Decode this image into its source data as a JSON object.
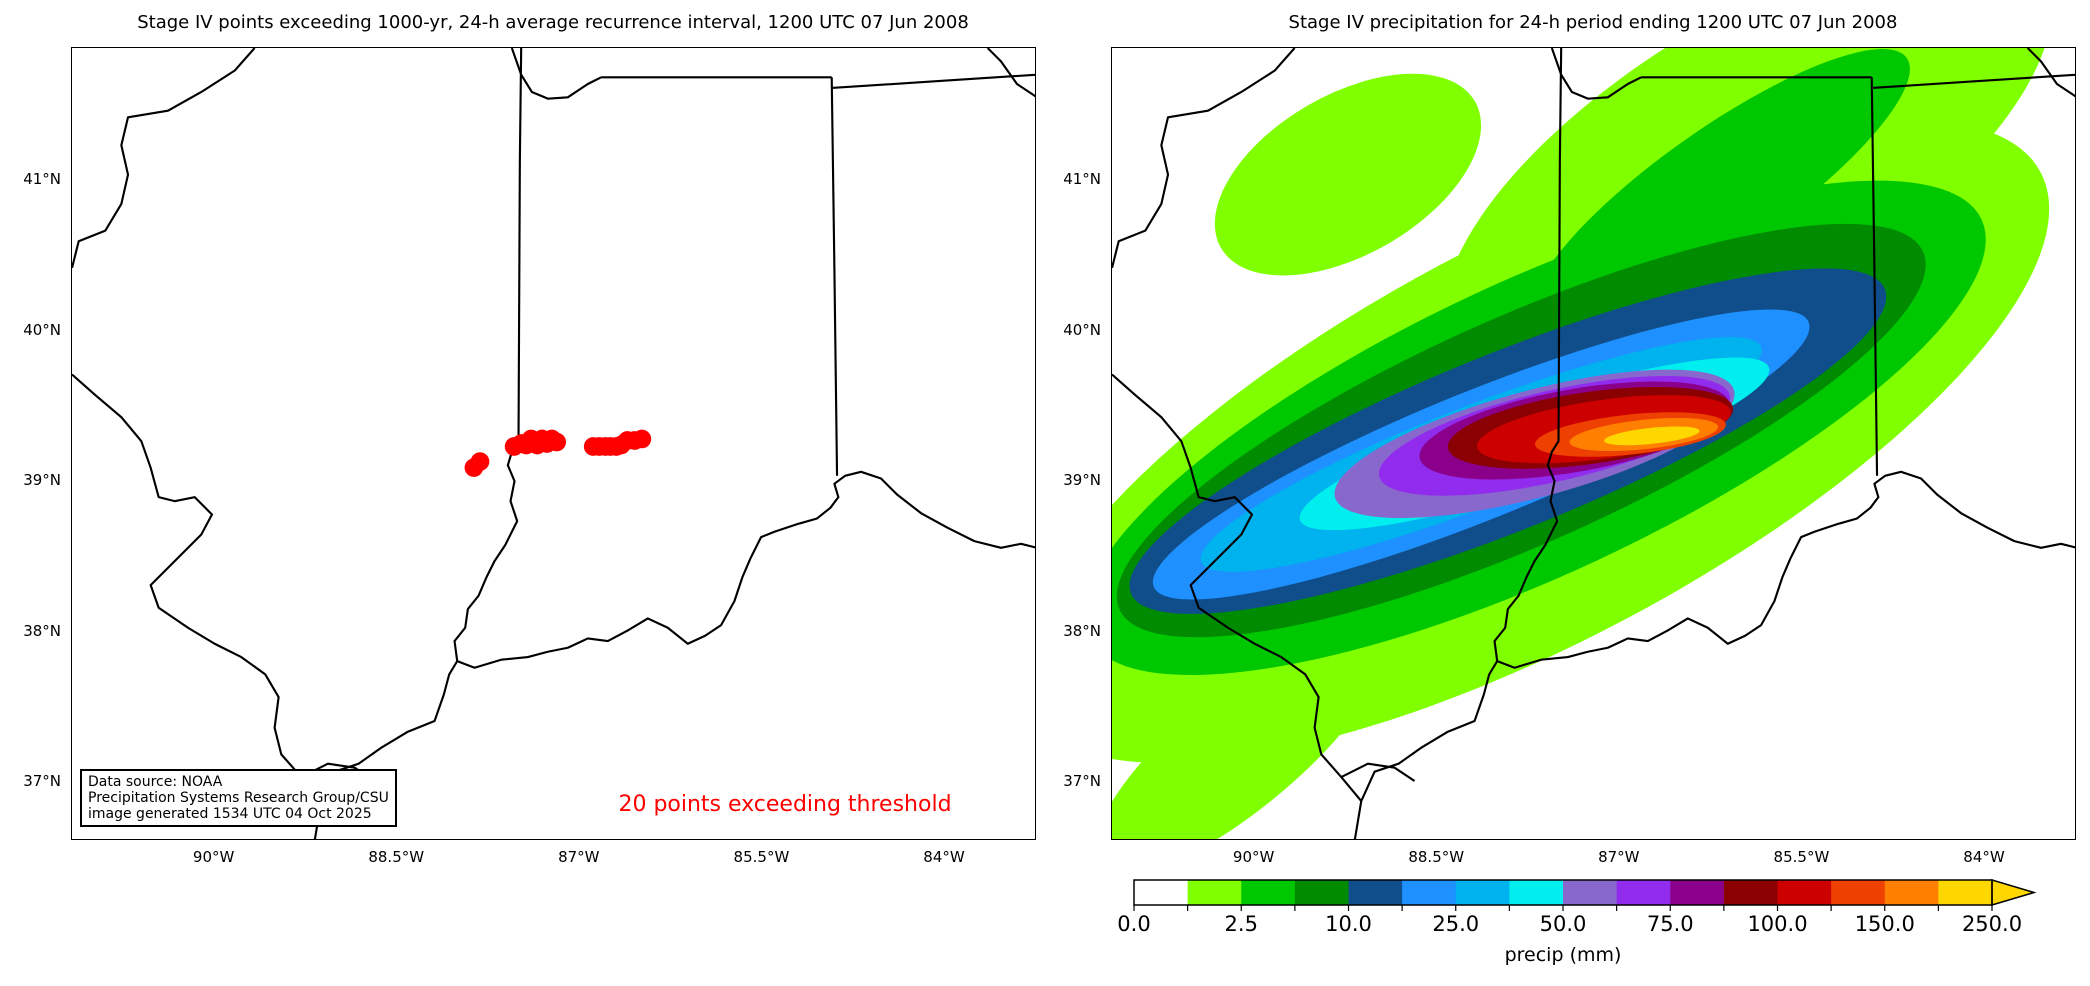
{
  "left_panel": {
    "title": "Stage IV points exceeding 1000-yr, 24-h average recurrence interval, 1200 UTC 07 Jun 2008",
    "annotation": "20 points exceeding threshold",
    "info_box": [
      "Data source: NOAA",
      "Precipitation Systems Research Group/CSU",
      "image generated 1534 UTC 04 Oct 2025"
    ],
    "point_color": "#ff0000",
    "points": [
      {
        "lon": -87.87,
        "lat": 39.09
      },
      {
        "lon": -87.82,
        "lat": 39.13
      },
      {
        "lon": -87.54,
        "lat": 39.23
      },
      {
        "lon": -87.48,
        "lat": 39.25
      },
      {
        "lon": -87.44,
        "lat": 39.24
      },
      {
        "lon": -87.4,
        "lat": 39.28
      },
      {
        "lon": -87.35,
        "lat": 39.24
      },
      {
        "lon": -87.31,
        "lat": 39.28
      },
      {
        "lon": -87.27,
        "lat": 39.25
      },
      {
        "lon": -87.23,
        "lat": 39.28
      },
      {
        "lon": -87.19,
        "lat": 39.26
      },
      {
        "lon": -86.89,
        "lat": 39.23
      },
      {
        "lon": -86.84,
        "lat": 39.23
      },
      {
        "lon": -86.79,
        "lat": 39.23
      },
      {
        "lon": -86.75,
        "lat": 39.23
      },
      {
        "lon": -86.7,
        "lat": 39.23
      },
      {
        "lon": -86.66,
        "lat": 39.24
      },
      {
        "lon": -86.61,
        "lat": 39.27
      },
      {
        "lon": -86.55,
        "lat": 39.27
      },
      {
        "lon": -86.49,
        "lat": 39.28
      }
    ]
  },
  "right_panel": {
    "title": "Stage IV precipitation for 24-h period ending 1200 UTC 07 Jun 2008"
  },
  "axes": {
    "lat_labels": [
      {
        "value": 41,
        "text": "41°N"
      },
      {
        "value": 40,
        "text": "40°N"
      },
      {
        "value": 39,
        "text": "39°N"
      },
      {
        "value": 38,
        "text": "38°N"
      },
      {
        "value": 37,
        "text": "37°N"
      }
    ],
    "lon_labels": [
      {
        "value": -90,
        "text": "90°W"
      },
      {
        "value": -88.5,
        "text": "88.5°W"
      },
      {
        "value": -87,
        "text": "87°W"
      },
      {
        "value": -85.5,
        "text": "85.5°W"
      },
      {
        "value": -84,
        "text": "84°W"
      }
    ]
  },
  "colorbar": {
    "label": "precip (mm)",
    "tick_labels": [
      "0.0",
      "2.5",
      "10.0",
      "25.0",
      "50.0",
      "75.0",
      "100.0",
      "150.0",
      "250.0"
    ],
    "colors": [
      "#ffffff",
      "#80ff00",
      "#00c800",
      "#008b00",
      "#104e8b",
      "#1e90ff",
      "#00b2ee",
      "#00eeee",
      "#8968cd",
      "#912cee",
      "#8b008b",
      "#8b0000",
      "#cd0000",
      "#ee4000",
      "#ff7f00",
      "#ffd700"
    ],
    "extend": "max"
  }
}
